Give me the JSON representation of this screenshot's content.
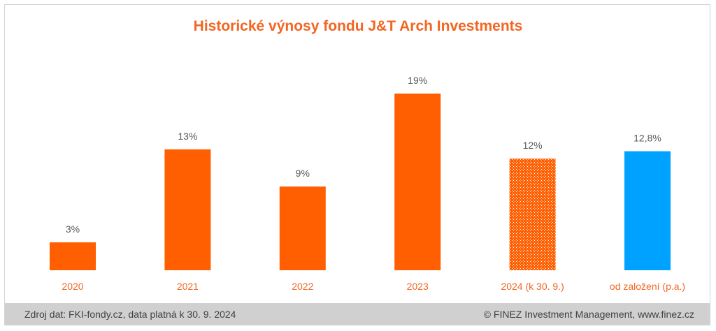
{
  "chart_data": {
    "type": "bar",
    "title": "Historické výnosy fondu J&T Arch Investments",
    "categories": [
      "2020",
      "2021",
      "2022",
      "2023",
      "2024 (k 30. 9.)",
      "od založení (p.a.)"
    ],
    "values": [
      3,
      13,
      9,
      19,
      12,
      12.8
    ],
    "data_labels": [
      "3%",
      "13%",
      "9%",
      "19%",
      "12%",
      "12,8%"
    ],
    "bar_styles": [
      "solid",
      "solid",
      "solid",
      "solid",
      "hatched",
      "solid"
    ],
    "bar_colors": [
      "#ff5f00",
      "#ff5f00",
      "#ff5f00",
      "#ff5f00",
      "#ff5f00",
      "#00a2ff"
    ],
    "category_label_color": "#f26522",
    "data_label_color": "#595959",
    "ylim": [
      0,
      19
    ],
    "grid": false,
    "legend": "none",
    "xlabel": "",
    "ylabel": ""
  },
  "footer": {
    "source": "Zdroj dat: FKI-fondy.cz, data platná k 30. 9. 2024",
    "copyright": "© FINEZ Investment Management, www.finez.cz"
  }
}
